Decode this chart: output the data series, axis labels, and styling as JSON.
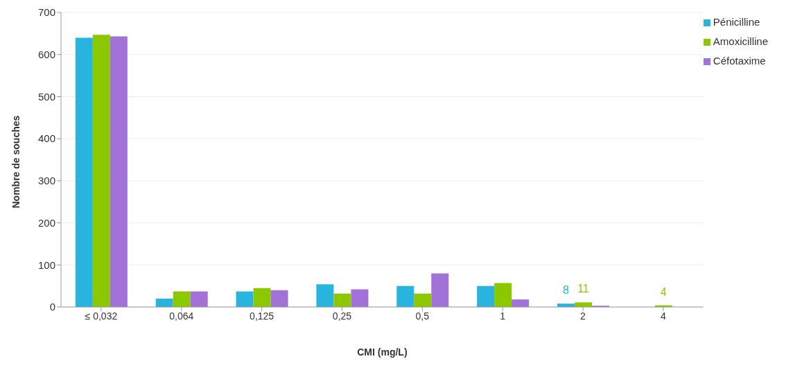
{
  "chart_data": {
    "type": "bar",
    "xlabel": "CMI (mg/L)",
    "ylabel": "Nombre de souches",
    "categories": [
      "≤ 0,032",
      "0,064",
      "0,125",
      "0,25",
      "0,5",
      "1",
      "2",
      "4"
    ],
    "series": [
      {
        "name": "Pénicilline",
        "color": "#29b4e0",
        "values": [
          640,
          20,
          37,
          54,
          50,
          50,
          8,
          0
        ],
        "value_labels": [
          null,
          null,
          null,
          null,
          null,
          null,
          "8",
          null
        ]
      },
      {
        "name": "Amoxicilline",
        "color": "#8cc800",
        "values": [
          647,
          37,
          45,
          32,
          32,
          57,
          11,
          4
        ],
        "value_labels": [
          null,
          null,
          null,
          null,
          null,
          null,
          "11",
          "4"
        ]
      },
      {
        "name": "Céfotaxime",
        "color": "#a272d8",
        "values": [
          643,
          37,
          40,
          42,
          80,
          18,
          3,
          0
        ]
      }
    ],
    "ylim": [
      0,
      700
    ],
    "yticks": [
      0,
      100,
      200,
      300,
      400,
      500,
      600,
      700
    ],
    "grid": "y",
    "legend": "top right"
  }
}
